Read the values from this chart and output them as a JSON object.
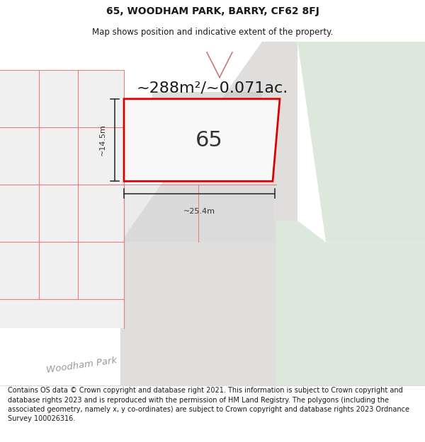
{
  "title": "65, WOODHAM PARK, BARRY, CF62 8FJ",
  "subtitle": "Map shows position and indicative extent of the property.",
  "footer": "Contains OS data © Crown copyright and database right 2021. This information is subject to Crown copyright and database rights 2023 and is reproduced with the permission of HM Land Registry. The polygons (including the associated geometry, namely x, y co-ordinates) are subject to Crown copyright and database rights 2023 Ordnance Survey 100026316.",
  "area_label": "~288m²/~0.071ac.",
  "title_fontsize": 10,
  "subtitle_fontsize": 8.5,
  "area_fontsize": 16,
  "footer_fontsize": 7,
  "street_label": "Woodham Park",
  "number_label": "65",
  "width_label": "~25.4m",
  "height_label": "~14.5m",
  "red_color": "#dd0000",
  "thin_red": "#e08080",
  "map_bg": "#eef3ee",
  "green_bg": "#dde8dd",
  "white_bg": "#f5f5f5",
  "road_bg": "#e0dedd",
  "grey_plot": "#d8d8d8"
}
